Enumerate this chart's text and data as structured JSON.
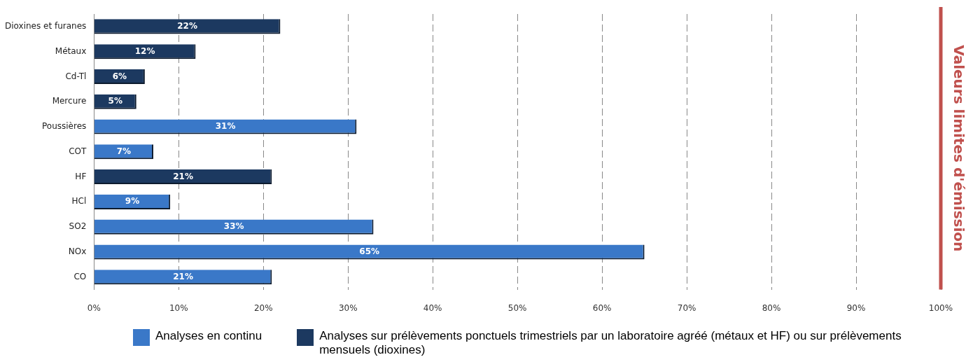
{
  "chart_data": {
    "type": "bar",
    "orientation": "horizontal",
    "stacked": true,
    "categories": [
      "Dioxines et furanes",
      "Métaux",
      "Cd-Tl",
      "Mercure",
      "Poussières",
      "COT",
      "HF",
      "HCl",
      "SO2",
      "NOx",
      "CO"
    ],
    "series": [
      {
        "name": "Analyses en continu",
        "color": "#3a78c8",
        "values": [
          null,
          null,
          null,
          null,
          31,
          7,
          null,
          9,
          33,
          65,
          21
        ],
        "value_labels": [
          null,
          null,
          null,
          null,
          "31%",
          "7%",
          null,
          "9%",
          "33%",
          "65%",
          "21%"
        ]
      },
      {
        "name": "Analyses sur prélèvements  ponctuels trimestriels par un laboratoire agréé (métaux et HF) ou sur prélèvements  mensuels (dioxines)",
        "color": "#1c3960",
        "values": [
          22,
          12,
          6,
          5,
          null,
          null,
          21,
          null,
          null,
          null,
          null
        ],
        "value_labels": [
          "22%",
          "12%",
          "6%",
          "5%",
          null,
          null,
          "21%",
          null,
          null,
          null,
          null
        ]
      }
    ],
    "xlim": [
      0,
      100
    ],
    "xticks": [
      {
        "value": 0,
        "label": "0%"
      },
      {
        "value": 10,
        "label": "10%"
      },
      {
        "value": 20,
        "label": "20%"
      },
      {
        "value": 30,
        "label": "30%"
      },
      {
        "value": 40,
        "label": "40%"
      },
      {
        "value": 50,
        "label": "50%"
      },
      {
        "value": 60,
        "label": "60%"
      },
      {
        "value": 70,
        "label": "70%"
      },
      {
        "value": 80,
        "label": "80%"
      },
      {
        "value": 90,
        "label": "90%"
      },
      {
        "value": 100,
        "label": "100%"
      }
    ],
    "grid": "x",
    "legend": "bottom",
    "ref_lines": [
      {
        "axis": "x",
        "value": 100,
        "label": "Valeurs limites d'émission",
        "color": "#c0504d"
      }
    ]
  }
}
